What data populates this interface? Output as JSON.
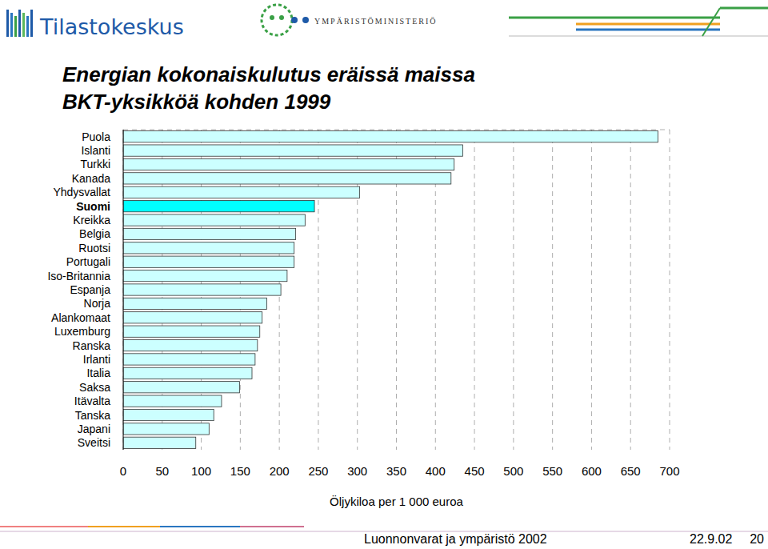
{
  "header": {
    "organization": "Tilastokeskus",
    "ministry": "YMPÄRISTÖMINISTERIÖ"
  },
  "chart_data": {
    "type": "bar",
    "orientation": "horizontal",
    "title": "Energian kokonaiskulutus eräissä maissa",
    "subtitle": "BKT-yksikköä kohden 1999",
    "x_label": "Öljykiloa per 1 000 euroa",
    "categories": [
      "Puola",
      "Islanti",
      "Turkki",
      "Kanada",
      "Yhdysvallat",
      "Suomi",
      "Kreikka",
      "Belgia",
      "Ruotsi",
      "Portugali",
      "Iso-Britannia",
      "Espanja",
      "Norja",
      "Alankomaat",
      "Luxemburg",
      "Ranska",
      "Irlanti",
      "Italia",
      "Saksa",
      "Itävalta",
      "Tanska",
      "Japani",
      "Sveitsi"
    ],
    "values": [
      685,
      435,
      424,
      420,
      303,
      245,
      233,
      221,
      219,
      219,
      210,
      202,
      184,
      178,
      175,
      172,
      169,
      165,
      149,
      126,
      116,
      110,
      93
    ],
    "colors": [
      "#ccffff",
      "#ccffff",
      "#ccffff",
      "#ccffff",
      "#ccffff",
      "#00ffff",
      "#ccffff",
      "#ccffff",
      "#ccffff",
      "#ccffff",
      "#ccffff",
      "#ccffff",
      "#ccffff",
      "#ccffff",
      "#ccffff",
      "#ccffff",
      "#ccffff",
      "#ccffff",
      "#ccffff",
      "#ccffff",
      "#ccffff",
      "#ccffff",
      "#ccffff"
    ],
    "xlim": [
      0,
      700
    ],
    "xticks": [
      0,
      50,
      100,
      150,
      200,
      250,
      300,
      350,
      400,
      450,
      500,
      550,
      600,
      650,
      700
    ],
    "grid": true
  },
  "footer": {
    "publication": "Luonnonvarat ja ympäristö 2002",
    "date": "22.9.02",
    "page": "20"
  }
}
